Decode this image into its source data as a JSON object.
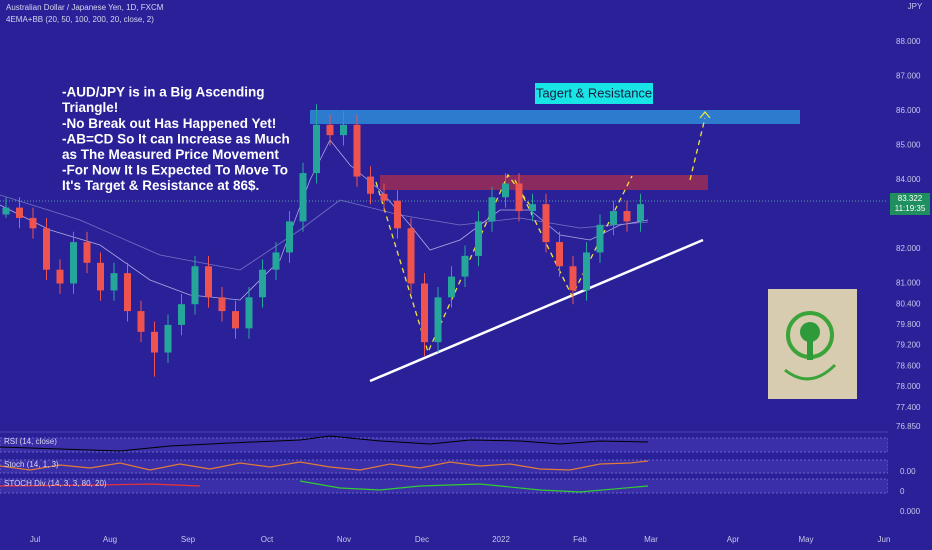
{
  "header": {
    "symbol": "Australian Dollar / Japanese Yen, 1D, FXCM",
    "indicator": "4EMA+BB (20, 50, 100, 200, 20, close, 2)",
    "currency": "JPY"
  },
  "annotation": [
    "-AUD/JPY is in a Big Ascending",
    "Triangle!",
    "-No Break out Has Happened Yet!",
    "-AB=CD So It can Increase as Much",
    "as The Measured Price Movement",
    "-For Now It Is Expected To Move To",
    "It's Target & Resistance at 86$."
  ],
  "target_label": "Tagert & Resistance",
  "price_label": {
    "price": "83.322",
    "countdown": "11:19:35"
  },
  "price_axis": [
    {
      "value": 88,
      "label": "88.000"
    },
    {
      "value": 87,
      "label": "87.000"
    },
    {
      "value": 86,
      "label": "86.000"
    },
    {
      "value": 85,
      "label": "85.000"
    },
    {
      "value": 84,
      "label": "84.000"
    },
    {
      "value": 82,
      "label": "82.000"
    },
    {
      "value": 81,
      "label": "81.000"
    },
    {
      "value": 80.4,
      "label": "80.400"
    },
    {
      "value": 79.8,
      "label": "79.800"
    },
    {
      "value": 79.2,
      "label": "79.200"
    },
    {
      "value": 78.6,
      "label": "78.600"
    },
    {
      "value": 78,
      "label": "78.000"
    },
    {
      "value": 77.4,
      "label": "77.400"
    },
    {
      "value": 76.85,
      "label": "76.850"
    }
  ],
  "indicator_axis": [
    "0.00",
    "0",
    "0.000"
  ],
  "indicators": [
    "RSI (14, close)",
    "Stoch (14, 1, 3)",
    "STOCH Div (14, 3, 3, 80, 20)"
  ],
  "time_axis": [
    "Jul",
    "Aug",
    "Sep",
    "Oct",
    "Nov",
    "Dec",
    "2022",
    "Feb",
    "Mar",
    "Apr",
    "May",
    "Jun"
  ],
  "candles": [
    [
      83.0,
      83.5,
      82.9,
      83.2
    ],
    [
      83.2,
      83.5,
      82.6,
      82.9
    ],
    [
      82.9,
      83.2,
      82.3,
      82.6
    ],
    [
      82.6,
      82.9,
      81.1,
      81.4
    ],
    [
      81.4,
      81.7,
      80.7,
      81.0
    ],
    [
      81.0,
      82.5,
      80.7,
      82.2
    ],
    [
      82.2,
      82.5,
      81.3,
      81.6
    ],
    [
      81.6,
      81.9,
      80.5,
      80.8
    ],
    [
      80.8,
      81.6,
      80.5,
      81.3
    ],
    [
      81.3,
      81.6,
      79.9,
      80.2
    ],
    [
      80.2,
      80.5,
      79.3,
      79.6
    ],
    [
      79.6,
      79.9,
      78.3,
      79.0
    ],
    [
      79.0,
      80.1,
      78.7,
      79.8
    ],
    [
      79.8,
      80.7,
      79.5,
      80.4
    ],
    [
      80.4,
      81.8,
      80.1,
      81.5
    ],
    [
      81.5,
      81.8,
      80.3,
      80.6
    ],
    [
      80.6,
      80.9,
      79.9,
      80.2
    ],
    [
      80.2,
      80.5,
      79.4,
      79.7
    ],
    [
      79.7,
      80.9,
      79.4,
      80.6
    ],
    [
      80.6,
      81.7,
      80.3,
      81.4
    ],
    [
      81.4,
      82.2,
      81.1,
      81.9
    ],
    [
      81.9,
      83.1,
      81.6,
      82.8
    ],
    [
      82.8,
      84.5,
      82.5,
      84.2
    ],
    [
      84.2,
      86.2,
      83.9,
      85.6
    ],
    [
      85.6,
      85.9,
      85.0,
      85.3
    ],
    [
      85.3,
      86.0,
      85.0,
      85.6
    ],
    [
      85.6,
      85.9,
      83.8,
      84.1
    ],
    [
      84.1,
      84.4,
      83.3,
      83.6
    ],
    [
      83.6,
      83.9,
      83.1,
      83.4
    ],
    [
      83.4,
      83.7,
      82.3,
      82.6
    ],
    [
      82.6,
      82.9,
      80.7,
      81.0
    ],
    [
      81.0,
      81.3,
      78.9,
      79.3
    ],
    [
      79.3,
      80.9,
      79.0,
      80.6
    ],
    [
      80.6,
      81.5,
      80.3,
      81.2
    ],
    [
      81.2,
      82.1,
      80.9,
      81.8
    ],
    [
      81.8,
      83.1,
      81.5,
      82.8
    ],
    [
      82.8,
      83.8,
      82.5,
      83.5
    ],
    [
      83.5,
      84.2,
      83.2,
      83.9
    ],
    [
      83.9,
      84.2,
      82.8,
      83.1
    ],
    [
      83.1,
      83.6,
      82.8,
      83.3
    ],
    [
      83.3,
      83.6,
      81.9,
      82.2
    ],
    [
      82.2,
      82.5,
      81.2,
      81.5
    ],
    [
      81.5,
      81.8,
      80.4,
      80.8
    ],
    [
      80.8,
      82.2,
      80.5,
      81.9
    ],
    [
      81.9,
      83.0,
      81.6,
      82.7
    ],
    [
      82.7,
      83.4,
      82.4,
      83.1
    ],
    [
      83.1,
      83.4,
      82.5,
      82.8
    ],
    [
      82.8,
      83.6,
      82.5,
      83.3
    ]
  ]
}
